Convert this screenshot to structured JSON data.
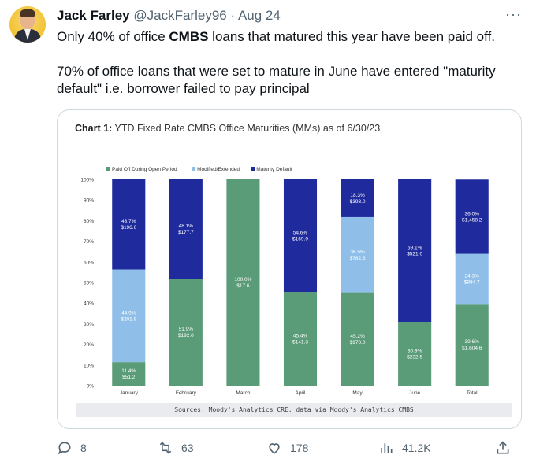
{
  "tweet": {
    "author_name": "Jack Farley",
    "author_handle": "@JackFarley96",
    "separator": "·",
    "date": "Aug 24",
    "more_icon": "more-horizontal-icon",
    "text_line1_pre": "Only 40% of office ",
    "text_line1_bold": "CMBS",
    "text_line1_post": " loans that matured this year have been paid off.",
    "text_line2": "70% of office loans that were set to mature in June have entered \"maturity default\" i.e. borrower failed to pay principal"
  },
  "chart_data": {
    "type": "bar",
    "stacked": true,
    "title_label": "Chart 1:",
    "title": "YTD Fixed Rate CMBS Office Maturities (MMs) as of 6/30/23",
    "categories": [
      "January",
      "February",
      "March",
      "April",
      "May",
      "June",
      "Total"
    ],
    "series": [
      {
        "name": "Paid Off During Open Period",
        "color": "#5a9b78",
        "values": [
          11.4,
          51.9,
          100.0,
          45.4,
          45.2,
          30.9,
          39.6
        ],
        "labels": [
          "11.4%|$51.2",
          "51.9%|$192.0",
          "100.0%|$17.6",
          "45.4%|$141.3",
          "45.2%|$970.0",
          "30.9%|$232.5",
          "39.6%|$1,604.6"
        ]
      },
      {
        "name": "Modified/Extended",
        "color": "#8fbfe8",
        "values": [
          44.9,
          0,
          0,
          0,
          36.5,
          0,
          24.3
        ],
        "labels": [
          "44.9%|$201.9",
          "",
          "",
          "",
          "36.5%|$782.8",
          "",
          "24.3%|$984.7"
        ]
      },
      {
        "name": "Maturity Default",
        "color": "#1f2a9c",
        "values": [
          43.7,
          48.1,
          0,
          54.6,
          18.3,
          69.1,
          36.0
        ],
        "labels": [
          "43.7%|$196.6",
          "48.1%|$177.7",
          "",
          "54.6%|$169.9",
          "18.3%|$393.0",
          "69.1%|$521.0",
          "36.0%|$1,458.2"
        ]
      }
    ],
    "yticks": [
      "0%",
      "10%",
      "20%",
      "30%",
      "40%",
      "50%",
      "60%",
      "70%",
      "80%",
      "90%",
      "100%"
    ],
    "ylim": [
      0,
      100
    ],
    "legend_position": "top-left",
    "grid": false,
    "source": "Sources: Moody's Analytics CRE, data via Moody's Analytics CMBS"
  },
  "actions": {
    "reply_icon": "reply-icon",
    "reply_count": "8",
    "retweet_icon": "retweet-icon",
    "retweet_count": "63",
    "like_icon": "heart-icon",
    "like_count": "178",
    "views_icon": "views-icon",
    "views_count": "41.2K",
    "share_icon": "share-icon"
  }
}
